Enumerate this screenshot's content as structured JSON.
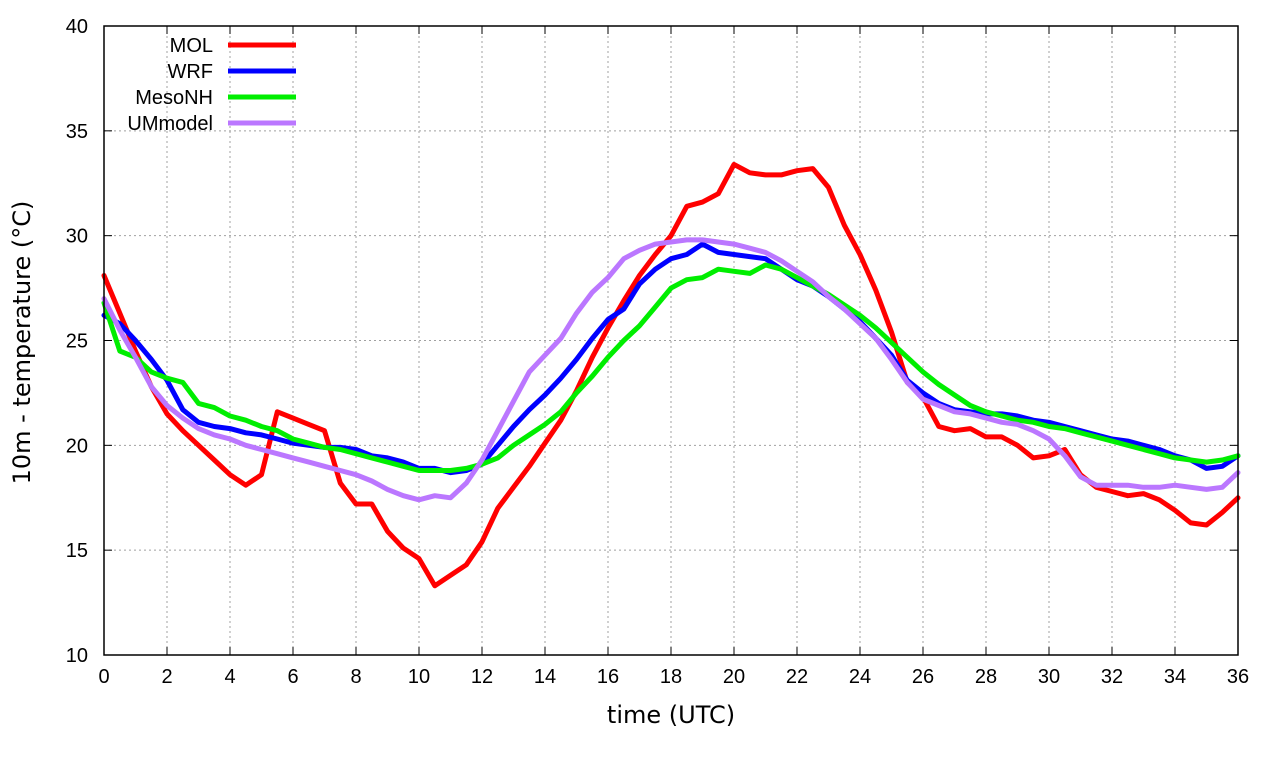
{
  "chart_data": {
    "type": "line",
    "title": "",
    "xlabel": "time (UTC)",
    "ylabel": "10m - temperature (°C)",
    "xlim": [
      0,
      36
    ],
    "ylim": [
      10,
      40
    ],
    "xticks": [
      0,
      2,
      4,
      6,
      8,
      10,
      12,
      14,
      16,
      18,
      20,
      22,
      24,
      26,
      28,
      30,
      32,
      34,
      36
    ],
    "yticks": [
      10,
      15,
      20,
      25,
      30,
      35,
      40
    ],
    "grid": true,
    "legend_position": "top-left",
    "series": [
      {
        "name": "MOL",
        "color": "#ff0000",
        "x": [
          0,
          0.5,
          1,
          1.5,
          2,
          2.5,
          3,
          3.5,
          4,
          4.5,
          5,
          5.5,
          6,
          6.5,
          7,
          7.5,
          8,
          8.5,
          9,
          9.5,
          10,
          10.5,
          11,
          11.5,
          12,
          12.5,
          13,
          13.5,
          14,
          14.5,
          15,
          15.5,
          16,
          16.5,
          17,
          17.5,
          18,
          18.5,
          19,
          19.5,
          20,
          20.5,
          21,
          21.5,
          22,
          22.5,
          23,
          23.5,
          24,
          24.5,
          25,
          25.5,
          26,
          26.5,
          27,
          27.5,
          28,
          28.5,
          29,
          29.5,
          30,
          30.5,
          31,
          31.5,
          32,
          32.5,
          33,
          33.5,
          34,
          34.5,
          35,
          35.5,
          36
        ],
        "values": [
          28.1,
          26.3,
          24.5,
          22.8,
          21.5,
          20.7,
          20.0,
          19.3,
          18.6,
          18.1,
          18.6,
          21.6,
          21.3,
          21.0,
          20.7,
          18.2,
          17.2,
          17.2,
          15.9,
          15.1,
          14.6,
          13.3,
          13.8,
          14.3,
          15.4,
          17.0,
          18.0,
          19.0,
          20.1,
          21.2,
          22.6,
          24.2,
          25.6,
          26.9,
          28.1,
          29.1,
          30.0,
          31.4,
          31.6,
          32.0,
          33.4,
          33.0,
          32.9,
          32.9,
          33.1,
          33.2,
          32.3,
          30.5,
          29.1,
          27.4,
          25.4,
          23.0,
          22.3,
          20.9,
          20.7,
          20.8,
          20.4,
          20.4,
          20.0,
          19.4,
          19.5,
          19.8,
          18.6,
          18.0,
          17.8,
          17.6,
          17.7,
          17.4,
          16.9,
          16.3,
          16.2,
          16.8,
          17.5
        ]
      },
      {
        "name": "WRF",
        "color": "#0000ff",
        "x": [
          0,
          0.5,
          1,
          1.5,
          2,
          2.5,
          3,
          3.5,
          4,
          4.5,
          5,
          5.5,
          6,
          6.5,
          7,
          7.5,
          8,
          8.5,
          9,
          9.5,
          10,
          10.5,
          11,
          11.5,
          12,
          12.5,
          13,
          13.5,
          14,
          14.5,
          15,
          15.5,
          16,
          16.5,
          17,
          17.5,
          18,
          18.5,
          19,
          19.5,
          20,
          20.5,
          21,
          21.5,
          22,
          22.5,
          23,
          23.5,
          24,
          24.5,
          25,
          25.5,
          26,
          26.5,
          27,
          27.5,
          28,
          28.5,
          29,
          29.5,
          30,
          30.5,
          31,
          31.5,
          32,
          32.5,
          33,
          33.5,
          34,
          34.5,
          35,
          35.5,
          36
        ],
        "values": [
          26.2,
          25.8,
          25.0,
          24.1,
          23.1,
          21.7,
          21.1,
          20.9,
          20.8,
          20.6,
          20.5,
          20.3,
          20.1,
          20.0,
          19.9,
          19.9,
          19.8,
          19.5,
          19.4,
          19.2,
          18.9,
          18.9,
          18.7,
          18.8,
          19.1,
          20.0,
          20.9,
          21.7,
          22.4,
          23.2,
          24.1,
          25.1,
          26.0,
          26.5,
          27.7,
          28.4,
          28.9,
          29.1,
          29.6,
          29.2,
          29.1,
          29.0,
          28.9,
          28.4,
          27.9,
          27.6,
          27.1,
          26.5,
          25.9,
          25.1,
          24.3,
          23.1,
          22.5,
          22.0,
          21.7,
          21.6,
          21.5,
          21.5,
          21.4,
          21.2,
          21.1,
          20.9,
          20.7,
          20.5,
          20.3,
          20.2,
          20.0,
          19.8,
          19.5,
          19.3,
          18.9,
          19.0,
          19.5
        ]
      },
      {
        "name": "MesoNH",
        "color": "#00ee00",
        "x": [
          0,
          0.5,
          1,
          1.5,
          2,
          2.5,
          3,
          3.5,
          4,
          4.5,
          5,
          5.5,
          6,
          6.5,
          7,
          7.5,
          8,
          8.5,
          9,
          9.5,
          10,
          10.5,
          11,
          11.5,
          12,
          12.5,
          13,
          13.5,
          14,
          14.5,
          15,
          15.5,
          16,
          16.5,
          17,
          17.5,
          18,
          18.5,
          19,
          19.5,
          20,
          20.5,
          21,
          21.5,
          22,
          22.5,
          23,
          23.5,
          24,
          24.5,
          25,
          25.5,
          26,
          26.5,
          27,
          27.5,
          28,
          28.5,
          29,
          29.5,
          30,
          30.5,
          31,
          31.5,
          32,
          32.5,
          33,
          33.5,
          34,
          34.5,
          35,
          35.5,
          36
        ],
        "values": [
          26.8,
          24.5,
          24.2,
          23.5,
          23.2,
          23.0,
          22.0,
          21.8,
          21.4,
          21.2,
          20.9,
          20.7,
          20.3,
          20.1,
          19.9,
          19.8,
          19.6,
          19.4,
          19.2,
          19.0,
          18.8,
          18.8,
          18.8,
          18.9,
          19.1,
          19.4,
          20.0,
          20.5,
          21.0,
          21.6,
          22.5,
          23.3,
          24.2,
          25.0,
          25.7,
          26.6,
          27.5,
          27.9,
          28.0,
          28.4,
          28.3,
          28.2,
          28.6,
          28.4,
          28.0,
          27.6,
          27.2,
          26.7,
          26.2,
          25.6,
          24.9,
          24.2,
          23.5,
          22.9,
          22.4,
          21.9,
          21.6,
          21.4,
          21.2,
          21.1,
          20.9,
          20.8,
          20.6,
          20.4,
          20.2,
          20.0,
          19.8,
          19.6,
          19.4,
          19.3,
          19.2,
          19.3,
          19.5
        ]
      },
      {
        "name": "UMmodel",
        "color": "#bb77ff",
        "x": [
          0,
          0.5,
          1,
          1.5,
          2,
          2.5,
          3,
          3.5,
          4,
          4.5,
          5,
          5.5,
          6,
          6.5,
          7,
          7.5,
          8,
          8.5,
          9,
          9.5,
          10,
          10.5,
          11,
          11.5,
          12,
          12.5,
          13,
          13.5,
          14,
          14.5,
          15,
          15.5,
          16,
          16.5,
          17,
          17.5,
          18,
          18.5,
          19,
          19.5,
          20,
          20.5,
          21,
          21.5,
          22,
          22.5,
          23,
          23.5,
          24,
          24.5,
          25,
          25.5,
          26,
          26.5,
          27,
          27.5,
          28,
          28.5,
          29,
          29.5,
          30,
          30.5,
          31,
          31.5,
          32,
          32.5,
          33,
          33.5,
          34,
          34.5,
          35,
          35.5,
          36
        ],
        "values": [
          27.0,
          25.5,
          24.2,
          22.8,
          21.9,
          21.3,
          20.8,
          20.5,
          20.3,
          20.0,
          19.8,
          19.6,
          19.4,
          19.2,
          19.0,
          18.8,
          18.6,
          18.3,
          17.9,
          17.6,
          17.4,
          17.6,
          17.5,
          18.2,
          19.3,
          20.7,
          22.1,
          23.5,
          24.3,
          25.1,
          26.3,
          27.3,
          28.0,
          28.9,
          29.3,
          29.6,
          29.7,
          29.8,
          29.8,
          29.7,
          29.6,
          29.4,
          29.2,
          28.8,
          28.3,
          27.8,
          27.1,
          26.5,
          25.8,
          25.1,
          24.1,
          23.0,
          22.2,
          21.9,
          21.6,
          21.5,
          21.3,
          21.1,
          21.0,
          20.7,
          20.3,
          19.5,
          18.5,
          18.1,
          18.1,
          18.1,
          18.0,
          18.0,
          18.1,
          18.0,
          17.9,
          18.0,
          18.7
        ]
      }
    ]
  }
}
